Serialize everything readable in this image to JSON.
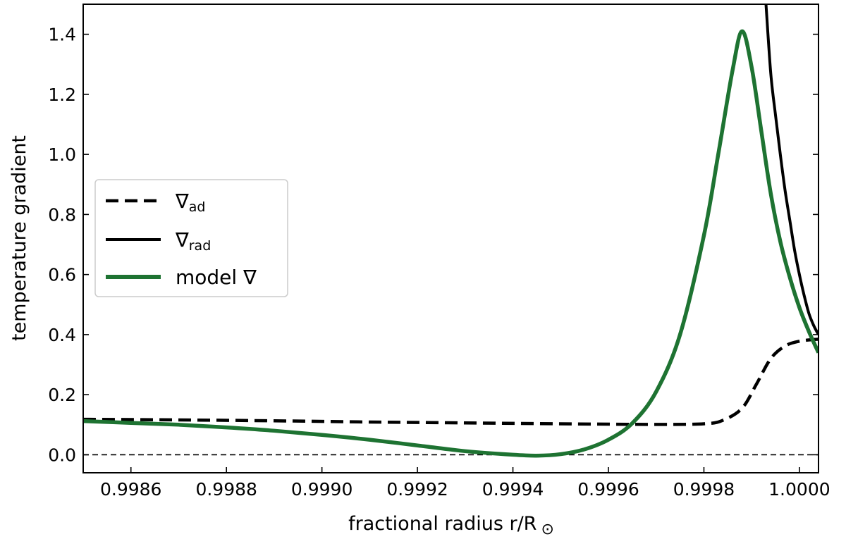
{
  "chart_data": {
    "type": "line",
    "title": "",
    "xlabel": "fractional radius r/R",
    "xlabel_symbol": "⊙",
    "ylabel": "temperature gradient",
    "xlim": [
      0.9985,
      1.00004
    ],
    "ylim": [
      -0.06,
      1.5
    ],
    "xticks": [
      0.9986,
      0.9988,
      0.999,
      0.9992,
      0.9994,
      0.9996,
      0.9998,
      1.0
    ],
    "xtick_labels": [
      "0.9986",
      "0.9988",
      "0.9990",
      "0.9992",
      "0.9994",
      "0.9996",
      "0.9998",
      "1.0000"
    ],
    "yticks": [
      0.0,
      0.2,
      0.4,
      0.6,
      0.8,
      1.0,
      1.2,
      1.4
    ],
    "ytick_labels": [
      "0.0",
      "0.2",
      "0.4",
      "0.6",
      "0.8",
      "1.0",
      "1.2",
      "1.4"
    ],
    "grid": false,
    "legend_position": "center-left",
    "reference_line": {
      "y": 0.0,
      "style": "dashed",
      "color": "#000000"
    },
    "series": [
      {
        "name_main": "∇",
        "name_sub": "ad",
        "style": "dashed",
        "color": "#000000",
        "x": [
          0.9985,
          0.9987,
          0.9989,
          0.9991,
          0.9993,
          0.9995,
          0.9997,
          0.9998,
          0.99984,
          0.99988,
          0.99991,
          0.99994,
          0.99997,
          1.0,
          1.00004
        ],
        "y": [
          0.118,
          0.116,
          0.113,
          0.109,
          0.106,
          0.103,
          0.101,
          0.103,
          0.115,
          0.155,
          0.235,
          0.32,
          0.362,
          0.378,
          0.385
        ]
      },
      {
        "name_main": "∇",
        "name_sub": "rad",
        "style": "solid",
        "color": "#000000",
        "x": [
          0.99993,
          0.99994,
          0.99995,
          0.99996,
          0.99997,
          0.99998,
          0.99999,
          1.0,
          1.00001,
          1.00002,
          1.00003,
          1.00004
        ],
        "y": [
          1.5,
          1.27,
          1.13,
          1.0,
          0.88,
          0.78,
          0.68,
          0.6,
          0.53,
          0.47,
          0.43,
          0.4
        ]
      },
      {
        "name_main": "model ∇",
        "name_sub": "",
        "style": "solid",
        "color": "#1e7332",
        "x": [
          0.9985,
          0.9986,
          0.9987,
          0.9988,
          0.9989,
          0.999,
          0.9991,
          0.9992,
          0.9993,
          0.9994,
          0.99945,
          0.9995,
          0.99955,
          0.9996,
          0.99965,
          0.9997,
          0.99975,
          0.9998,
          0.99983,
          0.99986,
          0.99988,
          0.9999,
          0.99992,
          0.99994,
          0.99996,
          0.99998,
          1.0,
          1.00002,
          1.00004
        ],
        "y": [
          0.112,
          0.106,
          0.1,
          0.091,
          0.08,
          0.066,
          0.05,
          0.031,
          0.012,
          0.0,
          -0.003,
          0.002,
          0.018,
          0.05,
          0.105,
          0.21,
          0.4,
          0.73,
          1.0,
          1.28,
          1.41,
          1.29,
          1.08,
          0.87,
          0.71,
          0.59,
          0.49,
          0.41,
          0.34
        ]
      }
    ]
  }
}
